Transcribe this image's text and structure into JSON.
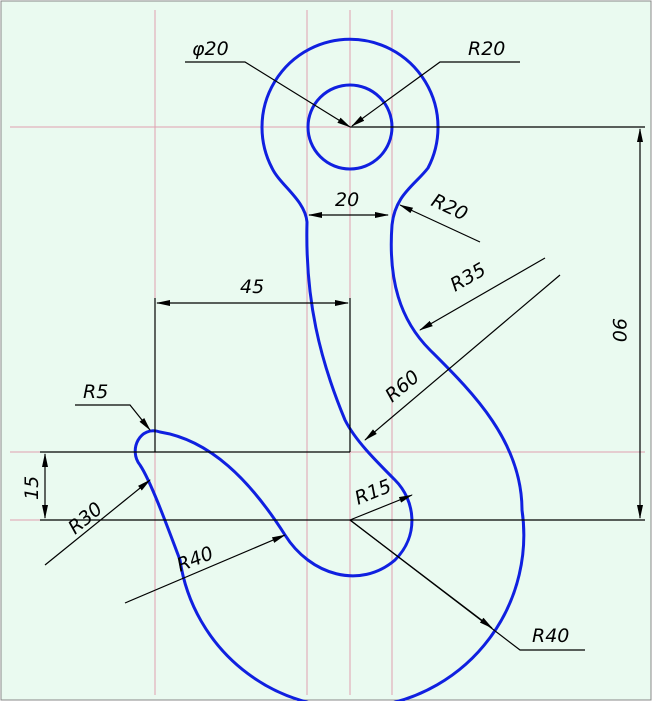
{
  "title": null,
  "dimensions": {
    "top_hole_diameter": "φ20",
    "top_radius": "R20",
    "neck_width": "20",
    "neck_radius": "R20",
    "outer_radius_mid": "R35",
    "offset_width": "45",
    "height": "90",
    "tip_radius": "R5",
    "inner_radius_large": "R60",
    "tip_offset": "15",
    "tip_radius_outer": "R30",
    "inner_radius_small": "R15",
    "inner_radius_lower": "R40",
    "outer_radius_lower": "R40"
  }
}
